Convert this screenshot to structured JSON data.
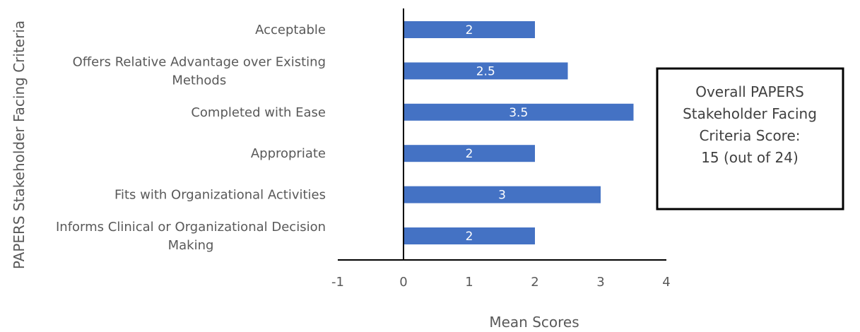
{
  "chart_data": {
    "type": "bar",
    "orientation": "horizontal",
    "categories": [
      [
        "Acceptable"
      ],
      [
        "Offers Relative Advantage over Existing",
        "Methods"
      ],
      [
        "Completed with Ease"
      ],
      [
        "Appropriate"
      ],
      [
        "Fits with Organizational Activities"
      ],
      [
        "Informs Clinical or Organizational Decision",
        "Making"
      ]
    ],
    "values": [
      2,
      2.5,
      3.5,
      2,
      3,
      2
    ],
    "data_labels": [
      "2",
      "2.5",
      "3.5",
      "2",
      "3",
      "2"
    ],
    "xlabel": "Mean Scores",
    "ylabel": "PAPERS Stakeholder Facing Criteria",
    "xlim": [
      -1,
      4
    ],
    "xticks": [
      "-1",
      "0",
      "1",
      "2",
      "3",
      "4"
    ],
    "grid": false,
    "bar_color": "#4472c4",
    "annotation": {
      "lines": [
        "Overall PAPERS",
        "Stakeholder Facing",
        "Criteria Score:",
        "15 (out of 24)"
      ]
    }
  }
}
